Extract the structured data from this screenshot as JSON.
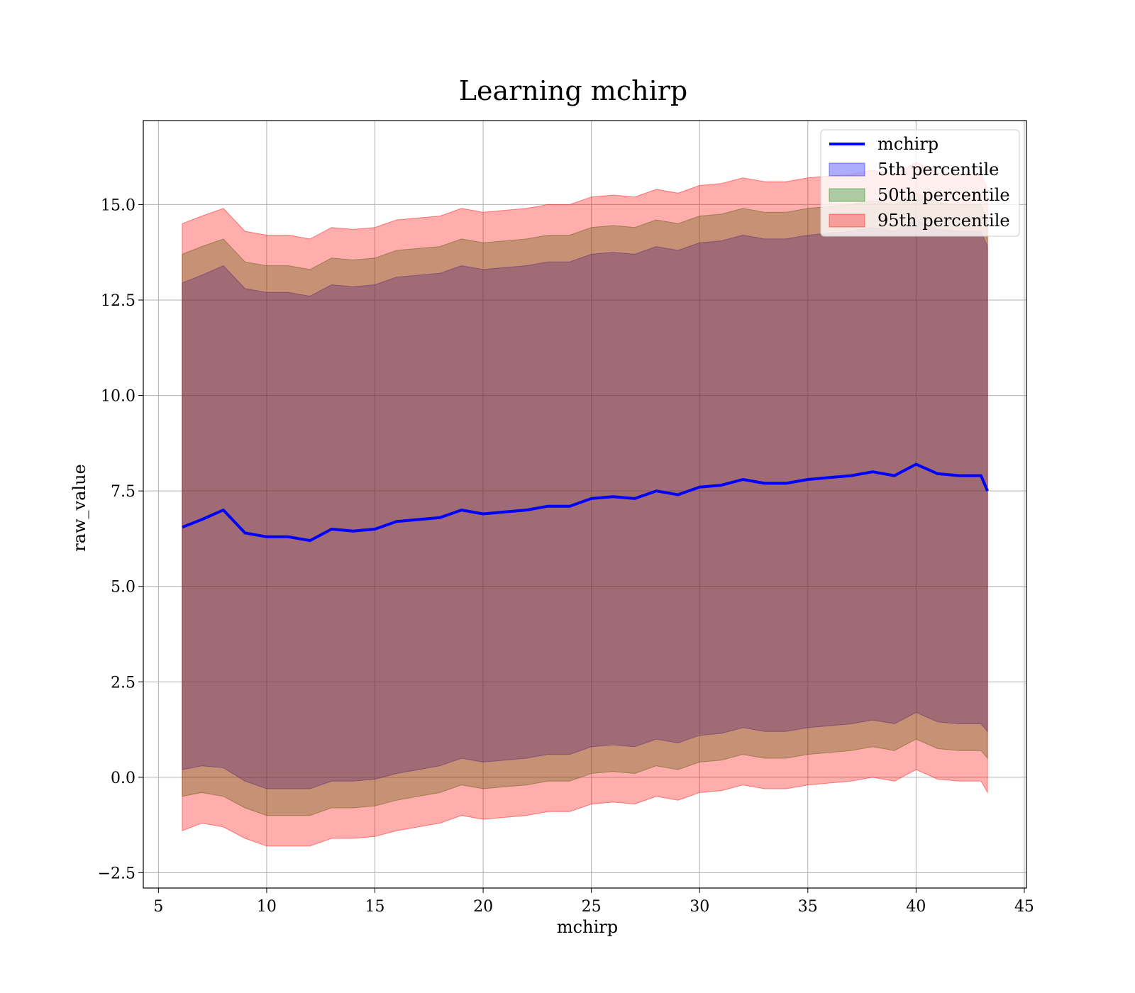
{
  "chart_data": {
    "type": "area",
    "title": "Learning mchirp",
    "xlabel": "mchirp",
    "ylabel": "raw_value",
    "xlim": [
      4.3,
      45.1
    ],
    "ylim": [
      -2.9,
      17.2
    ],
    "xticks": [
      5,
      10,
      15,
      20,
      25,
      30,
      35,
      40,
      45
    ],
    "xtick_labels": [
      "5",
      "10",
      "15",
      "20",
      "25",
      "30",
      "35",
      "40",
      "45"
    ],
    "yticks": [
      -2.5,
      0.0,
      2.5,
      5.0,
      7.5,
      10.0,
      12.5,
      15.0
    ],
    "ytick_labels": [
      "−2.5",
      "0.0",
      "2.5",
      "5.0",
      "7.5",
      "10.0",
      "12.5",
      "15.0"
    ],
    "grid": true,
    "legend_position": "top-right",
    "legend": [
      "mchirp",
      "5th percentile",
      "50th percentile",
      "95th percentile"
    ],
    "x": [
      6.1,
      7,
      8,
      9,
      10,
      11,
      12,
      13,
      14,
      15,
      16,
      17,
      18,
      19,
      20,
      21,
      22,
      23,
      24,
      25,
      26,
      27,
      28,
      29,
      30,
      31,
      32,
      33,
      34,
      35,
      36,
      37,
      38,
      39,
      40,
      41,
      42,
      43,
      43.3
    ],
    "series": [
      {
        "name": "mchirp",
        "kind": "line",
        "color": "#0000ff",
        "values": [
          6.55,
          6.75,
          7.0,
          6.4,
          6.3,
          6.3,
          6.2,
          6.5,
          6.45,
          6.5,
          6.7,
          6.75,
          6.8,
          7.0,
          6.9,
          6.95,
          7.0,
          7.1,
          7.1,
          7.3,
          7.35,
          7.3,
          7.5,
          7.4,
          7.6,
          7.65,
          7.8,
          7.7,
          7.7,
          7.8,
          7.85,
          7.9,
          8.0,
          7.9,
          8.2,
          7.95,
          7.9,
          7.9,
          7.5
        ]
      },
      {
        "name": "5th percentile",
        "kind": "band",
        "color": "#0000ff",
        "lower": [
          0.2,
          0.3,
          0.25,
          -0.1,
          -0.3,
          -0.3,
          -0.3,
          -0.1,
          -0.1,
          -0.05,
          0.1,
          0.2,
          0.3,
          0.5,
          0.4,
          0.45,
          0.5,
          0.6,
          0.6,
          0.8,
          0.85,
          0.8,
          1.0,
          0.9,
          1.1,
          1.15,
          1.3,
          1.2,
          1.2,
          1.3,
          1.35,
          1.4,
          1.5,
          1.4,
          1.7,
          1.45,
          1.4,
          1.4,
          1.2
        ],
        "upper": [
          12.95,
          13.15,
          13.4,
          12.8,
          12.7,
          12.7,
          12.6,
          12.9,
          12.85,
          12.9,
          13.1,
          13.15,
          13.2,
          13.4,
          13.3,
          13.35,
          13.4,
          13.5,
          13.5,
          13.7,
          13.75,
          13.7,
          13.9,
          13.8,
          14.0,
          14.05,
          14.2,
          14.1,
          14.1,
          14.2,
          14.25,
          14.3,
          14.4,
          14.3,
          14.6,
          14.35,
          14.3,
          14.3,
          13.9
        ]
      },
      {
        "name": "50th percentile",
        "kind": "band",
        "color": "#008000",
        "lower": [
          -0.5,
          -0.4,
          -0.5,
          -0.8,
          -1.0,
          -1.0,
          -1.0,
          -0.8,
          -0.8,
          -0.75,
          -0.6,
          -0.5,
          -0.4,
          -0.2,
          -0.3,
          -0.25,
          -0.2,
          -0.1,
          -0.1,
          0.1,
          0.15,
          0.1,
          0.3,
          0.2,
          0.4,
          0.45,
          0.6,
          0.5,
          0.5,
          0.6,
          0.65,
          0.7,
          0.8,
          0.7,
          1.0,
          0.75,
          0.7,
          0.7,
          0.5
        ],
        "upper": [
          13.7,
          13.9,
          14.1,
          13.5,
          13.4,
          13.4,
          13.3,
          13.6,
          13.55,
          13.6,
          13.8,
          13.85,
          13.9,
          14.1,
          14.0,
          14.05,
          14.1,
          14.2,
          14.2,
          14.4,
          14.45,
          14.4,
          14.6,
          14.5,
          14.7,
          14.75,
          14.9,
          14.8,
          14.8,
          14.9,
          14.95,
          15.0,
          15.1,
          15.0,
          15.3,
          15.05,
          15.0,
          15.0,
          14.6
        ]
      },
      {
        "name": "95th percentile",
        "kind": "band",
        "color": "#ff0000",
        "lower": [
          -1.4,
          -1.2,
          -1.3,
          -1.6,
          -1.8,
          -1.8,
          -1.8,
          -1.6,
          -1.6,
          -1.55,
          -1.4,
          -1.3,
          -1.2,
          -1.0,
          -1.1,
          -1.05,
          -1.0,
          -0.9,
          -0.9,
          -0.7,
          -0.65,
          -0.7,
          -0.5,
          -0.6,
          -0.4,
          -0.35,
          -0.2,
          -0.3,
          -0.3,
          -0.2,
          -0.15,
          -0.1,
          0.0,
          -0.1,
          0.2,
          -0.05,
          -0.1,
          -0.1,
          -0.4
        ],
        "upper": [
          14.5,
          14.7,
          14.9,
          14.3,
          14.2,
          14.2,
          14.1,
          14.4,
          14.35,
          14.4,
          14.6,
          14.65,
          14.7,
          14.9,
          14.8,
          14.85,
          14.9,
          15.0,
          15.0,
          15.2,
          15.25,
          15.2,
          15.4,
          15.3,
          15.5,
          15.55,
          15.7,
          15.6,
          15.6,
          15.7,
          15.75,
          15.8,
          15.9,
          15.8,
          16.1,
          15.85,
          15.8,
          15.8,
          15.4
        ]
      }
    ]
  }
}
